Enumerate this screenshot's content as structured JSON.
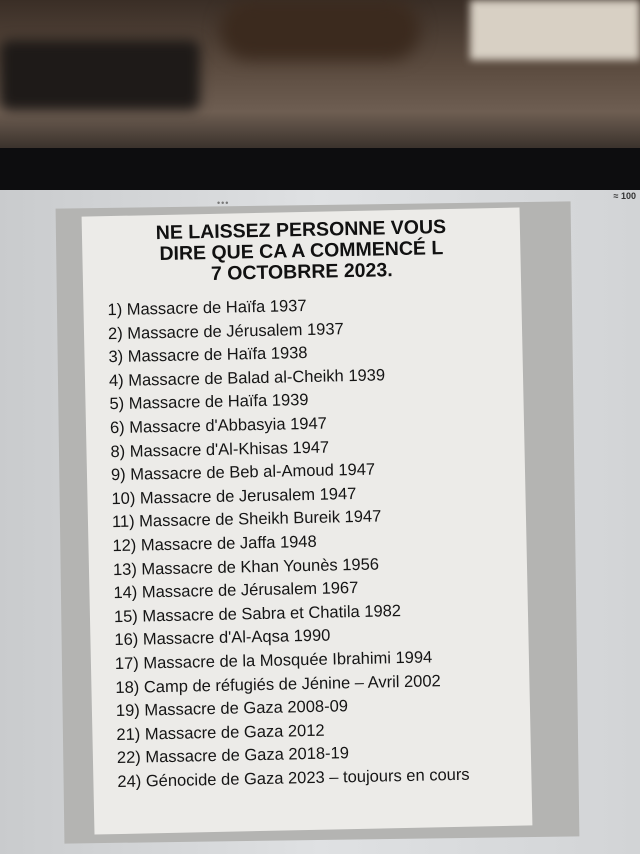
{
  "status_bar": {
    "wifi_icon": "wifi-icon",
    "battery": "100"
  },
  "document": {
    "title_lines": [
      "NE LAISSEZ PERSONNE VOUS",
      "DIRE QUE CA A COMMENCÉ L",
      "7 OCTOBRRE 2023."
    ],
    "items": [
      "1) Massacre de Haïfa 1937",
      "2) Massacre de Jérusalem 1937",
      "3) Massacre de Haïfa 1938",
      "4) Massacre de Balad al-Cheikh 1939",
      "5) Massacre de Haïfa 1939",
      "6) Massacre d'Abbasyia 1947",
      "8) Massacre d'Al-Khisas 1947",
      "9) Massacre de Beb al-Amoud 1947",
      "10) Massacre de Jerusalem 1947",
      "11) Massacre de Sheikh Bureik 1947",
      "12) Massacre de Jaffa 1948",
      "13) Massacre de Khan Younès 1956",
      "14) Massacre de Jérusalem 1967",
      "15) Massacre de Sabra et Chatila 1982",
      "16) Massacre d'Al-Aqsa 1990",
      "17) Massacre de la Mosquée Ibrahimi 1994",
      "18) Camp de réfugiés de Jénine – Avril 2002",
      "19) Massacre de Gaza 2008-09",
      "21) Massacre de Gaza 2012",
      "22) Massacre de Gaza 2018-19",
      "24) Génocide de Gaza 2023 – toujours en cours"
    ]
  }
}
